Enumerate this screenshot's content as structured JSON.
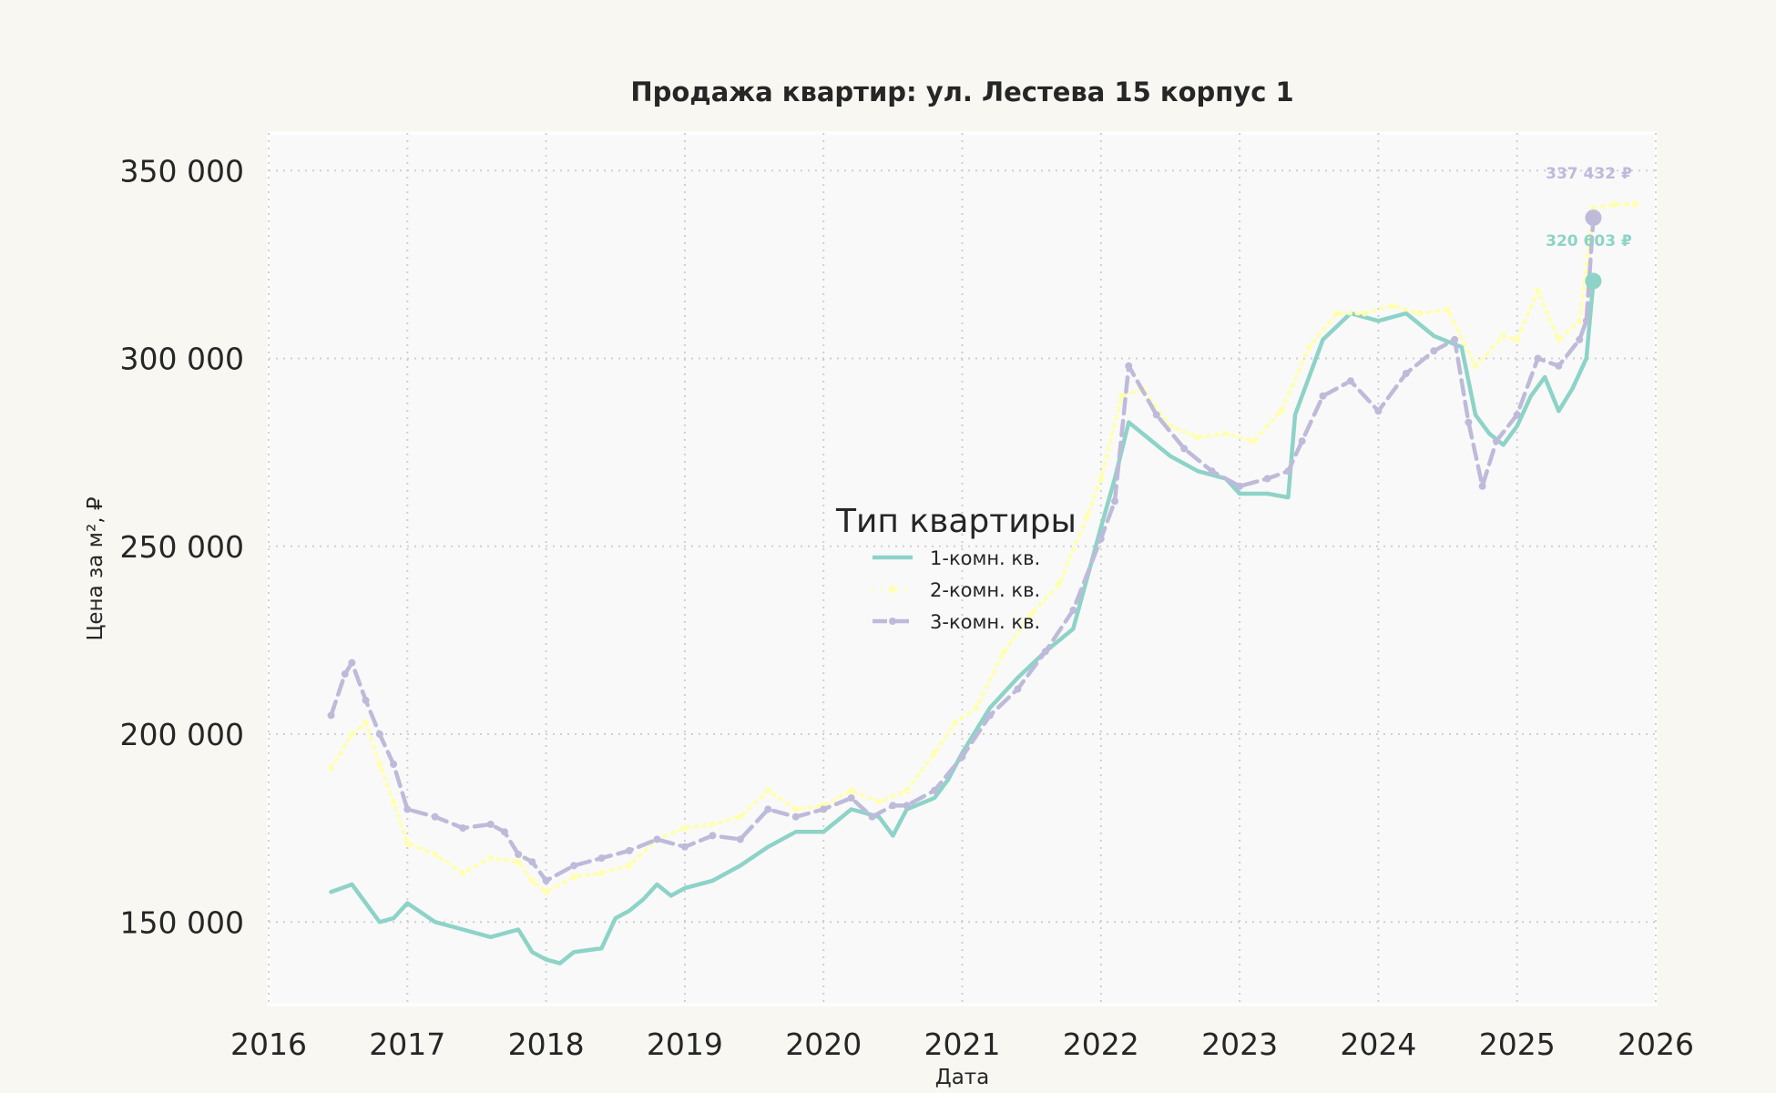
{
  "chart_data": {
    "type": "line",
    "title": "Продажа квартир: ул. Лестева 15 корпус 1",
    "xlabel": "Дата",
    "ylabel": "Цена за м², ₽",
    "xlim": [
      2016.0,
      2026.0
    ],
    "ylim": [
      128000,
      360000
    ],
    "x_ticks": [
      2016,
      2017,
      2018,
      2019,
      2020,
      2021,
      2022,
      2023,
      2024,
      2025,
      2026
    ],
    "x_tick_labels": [
      "2016",
      "2017",
      "2018",
      "2019",
      "2020",
      "2021",
      "2022",
      "2023",
      "2024",
      "2025",
      "2026"
    ],
    "y_ticks": [
      150000,
      200000,
      250000,
      300000,
      350000
    ],
    "y_tick_labels": [
      "150 000",
      "200 000",
      "250 000",
      "300 000",
      "350 000"
    ],
    "grid": true,
    "legend": {
      "title": "Тип квартиры",
      "placement": "center"
    },
    "series": [
      {
        "name": "1-комн. кв.",
        "color": "#8dd3c7",
        "style": "solid",
        "x": [
          2016.45,
          2016.6,
          2016.7,
          2016.8,
          2016.9,
          2017.0,
          2017.2,
          2017.4,
          2017.6,
          2017.8,
          2017.9,
          2018.0,
          2018.1,
          2018.2,
          2018.4,
          2018.5,
          2018.6,
          2018.7,
          2018.8,
          2018.9,
          2019.0,
          2019.2,
          2019.4,
          2019.6,
          2019.8,
          2020.0,
          2020.2,
          2020.4,
          2020.5,
          2020.6,
          2020.8,
          2020.9,
          2021.0,
          2021.2,
          2021.4,
          2021.6,
          2021.8,
          2022.0,
          2022.1,
          2022.2,
          2022.3,
          2022.5,
          2022.7,
          2022.9,
          2023.0,
          2023.2,
          2023.35,
          2023.4,
          2023.6,
          2023.8,
          2024.0,
          2024.2,
          2024.4,
          2024.6,
          2024.7,
          2024.8,
          2024.9,
          2025.0,
          2025.1,
          2025.2,
          2025.3,
          2025.4,
          2025.45,
          2025.5,
          2025.55
        ],
        "y": [
          158000,
          160000,
          155000,
          150000,
          151000,
          155000,
          150000,
          148000,
          146000,
          148000,
          142000,
          140000,
          139000,
          142000,
          143000,
          151000,
          153000,
          156000,
          160000,
          157000,
          159000,
          161000,
          165000,
          170000,
          174000,
          174000,
          180000,
          178000,
          173000,
          180000,
          183000,
          188000,
          195000,
          207000,
          215000,
          222000,
          228000,
          255000,
          268000,
          283000,
          280000,
          274000,
          270000,
          268000,
          264000,
          264000,
          263000,
          285000,
          305000,
          312000,
          310000,
          312000,
          306000,
          303000,
          285000,
          280000,
          277000,
          282000,
          290000,
          295000,
          286000,
          292000,
          296000,
          300000,
          320603
        ]
      },
      {
        "name": "2-комн. кв.",
        "color": "#ffffb3",
        "style": "dotted",
        "x": [
          2016.45,
          2016.6,
          2016.7,
          2016.8,
          2016.9,
          2017.0,
          2017.2,
          2017.4,
          2017.6,
          2017.8,
          2017.9,
          2018.0,
          2018.2,
          2018.4,
          2018.6,
          2018.8,
          2019.0,
          2019.2,
          2019.4,
          2019.6,
          2019.8,
          2020.0,
          2020.2,
          2020.4,
          2020.6,
          2020.8,
          2020.95,
          2021.1,
          2021.3,
          2021.5,
          2021.7,
          2021.9,
          2022.0,
          2022.15,
          2022.3,
          2022.5,
          2022.7,
          2022.9,
          2023.1,
          2023.3,
          2023.5,
          2023.7,
          2023.9,
          2024.1,
          2024.3,
          2024.5,
          2024.7,
          2024.9,
          2025.0,
          2025.15,
          2025.3,
          2025.45,
          2025.55,
          2025.7,
          2025.85
        ],
        "y": [
          191000,
          200000,
          203000,
          192000,
          182000,
          171000,
          168000,
          163000,
          167000,
          166000,
          161000,
          158000,
          162000,
          163000,
          165000,
          172000,
          175000,
          176000,
          178000,
          185000,
          180000,
          181000,
          185000,
          182000,
          185000,
          195000,
          203000,
          207000,
          222000,
          232000,
          240000,
          258000,
          268000,
          290000,
          292000,
          282000,
          279000,
          280000,
          278000,
          286000,
          303000,
          312000,
          312000,
          314000,
          312000,
          313000,
          298000,
          306000,
          305000,
          318000,
          305000,
          310000,
          340000,
          341000,
          341000
        ]
      },
      {
        "name": "3-комн. кв.",
        "color": "#bebada",
        "style": "dashed",
        "x": [
          2016.45,
          2016.55,
          2016.6,
          2016.7,
          2016.8,
          2016.9,
          2017.0,
          2017.2,
          2017.4,
          2017.6,
          2017.7,
          2017.8,
          2017.9,
          2018.0,
          2018.2,
          2018.4,
          2018.6,
          2018.8,
          2019.0,
          2019.2,
          2019.4,
          2019.6,
          2019.8,
          2020.0,
          2020.2,
          2020.35,
          2020.5,
          2020.6,
          2020.8,
          2021.0,
          2021.2,
          2021.4,
          2021.6,
          2021.8,
          2022.0,
          2022.1,
          2022.2,
          2022.4,
          2022.6,
          2022.8,
          2023.0,
          2023.2,
          2023.35,
          2023.45,
          2023.6,
          2023.8,
          2024.0,
          2024.2,
          2024.4,
          2024.55,
          2024.65,
          2024.75,
          2024.85,
          2025.0,
          2025.15,
          2025.3,
          2025.45,
          2025.5,
          2025.55
        ],
        "y": [
          205000,
          216000,
          219000,
          209000,
          200000,
          192000,
          180000,
          178000,
          175000,
          176000,
          174000,
          168000,
          166000,
          161000,
          165000,
          167000,
          169000,
          172000,
          170000,
          173000,
          172000,
          180000,
          178000,
          180000,
          183000,
          178000,
          181000,
          181000,
          185000,
          194000,
          205000,
          212000,
          222000,
          233000,
          252000,
          262000,
          298000,
          285000,
          276000,
          270000,
          266000,
          268000,
          270000,
          278000,
          290000,
          294000,
          286000,
          296000,
          302000,
          305000,
          283000,
          266000,
          278000,
          285000,
          300000,
          298000,
          305000,
          310000,
          337432
        ]
      }
    ],
    "annotations": [
      {
        "text": "337 432 ₽",
        "x": 2025.55,
        "y": 337432,
        "color": "#bebada"
      },
      {
        "text": "320 603 ₽",
        "x": 2025.55,
        "y": 320603,
        "color": "#8dd3c7"
      }
    ]
  }
}
